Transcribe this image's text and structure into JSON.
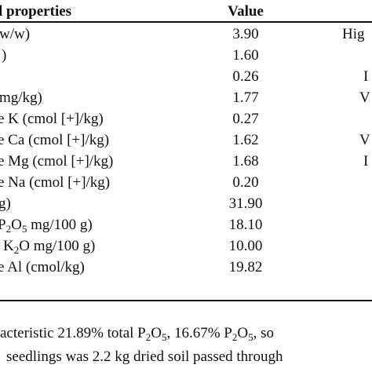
{
  "table": {
    "header": {
      "property": "l properties",
      "value": "Value"
    },
    "rows": [
      {
        "property": "w/w)",
        "value": "3.90",
        "criterion": "Hig"
      },
      {
        "property": ")",
        "value": "1.60",
        "criterion": ""
      },
      {
        "property": "",
        "value": "0.26",
        "criterion": "I"
      },
      {
        "property": "mg/kg)",
        "value": "1.77",
        "criterion": "V"
      },
      {
        "property": "e K (cmol [+]/kg)",
        "value": "0.27",
        "criterion": ""
      },
      {
        "property": "e Ca (cmol [+]/kg)",
        "value": "1.62",
        "criterion": "V"
      },
      {
        "property": "e Mg (cmol [+]/kg)",
        "value": "1.68",
        "criterion": "I"
      },
      {
        "property": "e Na (cmol [+]/kg)",
        "value": "0.20",
        "criterion": ""
      },
      {
        "property": "g)",
        "value": "31.90",
        "criterion": ""
      },
      {
        "property_pre": "P",
        "property_sub1": "2",
        "property_mid": "O",
        "property_sub2": "5",
        "property_post": " mg/100 g)",
        "value": "18.10",
        "criterion": ""
      },
      {
        "property_pre": "K",
        "property_sub1": "2",
        "property_mid": "O mg/100 g)",
        "value": "10.00",
        "criterion": ""
      },
      {
        "property": "e Al (cmol/kg)",
        "value": "19.82",
        "criterion": ""
      }
    ]
  },
  "note": {
    "line1_a": "acteristic 21.89% total P",
    "line1_sub1": "2",
    "line1_b": "O",
    "line1_sub2": "5",
    "line1_c": ", 16.67% P",
    "line1_sub3": "2",
    "line1_d": "O",
    "line1_sub4": "5",
    "line1_e": ", so",
    "line2": "seedlings was 2.2 kg dried soil passed through"
  }
}
